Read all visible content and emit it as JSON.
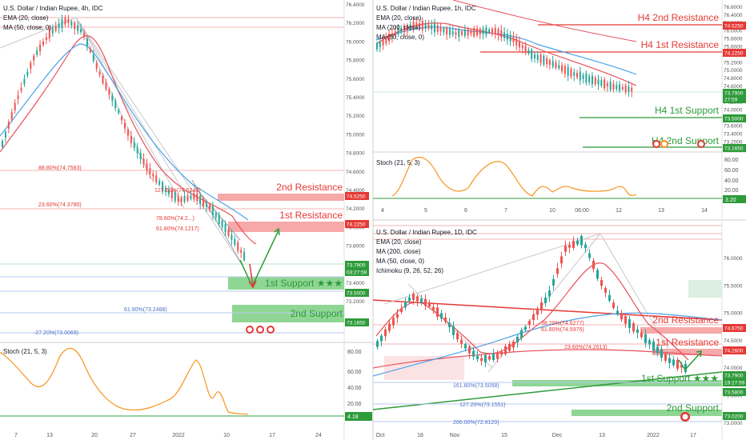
{
  "colors": {
    "up": "#26a69a",
    "down": "#ef5350",
    "resistance_zone": "#f7a8a8",
    "support_zone": "#8fd694",
    "resistance_text": "#e53935",
    "support_text": "#2e9b3a",
    "ema": "#e8505b",
    "ma": "#4da3e8",
    "stoch": "#f7941d",
    "price_tag_red": "#e53935",
    "price_tag_green": "#2e9b3a"
  },
  "chart_data": [
    {
      "type": "candlestick",
      "panel": "4h",
      "title": "U.S. Dollar / Indian Rupee, 4h, IDC",
      "indicators": [
        "EMA (20, close)",
        "MA (50, close, 0)"
      ],
      "ylim": [
        72.8,
        76.6
      ],
      "y_ticks": [
        "76.4000",
        "76.2000",
        "76.0000",
        "75.8000",
        "75.6000",
        "75.4000",
        "75.2000",
        "75.0000",
        "74.8000",
        "74.6000",
        "74.4000",
        "74.2000",
        "74.0000",
        "73.8000",
        "73.6000",
        "73.4000",
        "73.2000",
        "73.0000"
      ],
      "x_ticks": [
        "7",
        "13",
        "20",
        "27",
        "2022",
        "10",
        "17",
        "24"
      ],
      "price_tags": [
        {
          "label": "74.5250",
          "color": "red"
        },
        {
          "label": "74.2250",
          "color": "red"
        },
        {
          "label": "73.7900",
          "color": "green"
        },
        {
          "label": "03:27:59",
          "color": "green"
        },
        {
          "label": "73.5000",
          "color": "green"
        },
        {
          "label": "73.1650",
          "color": "green"
        }
      ],
      "annotations": {
        "r2": "2nd Resistance",
        "r1": "1st Resistance",
        "s1": "1st Support ★★★",
        "s2": "2nd Support",
        "fib1": "88.80%(74.7583)",
        "fib2": "23.60%(74.3780)",
        "fib3": "78.60%(74.2...)",
        "fib4": "61.80%(74.1217)",
        "fib5": "127.20%(74.5248)",
        "fib6": "61.80%(73.2488)",
        "fib7": "-27.20%(73.0069)"
      },
      "stoch": {
        "label": "Stoch (21, 5, 3)",
        "ticks": [
          "80.00",
          "60.00",
          "40.00",
          "20.00"
        ],
        "value_tag": "4.18"
      }
    },
    {
      "type": "candlestick",
      "panel": "1h",
      "title": "U.S. Dollar / Indian Rupee, 1h, IDC",
      "indicators": [
        "EMA (20, close)",
        "MA (200, close)",
        "MA (50, close, 0)"
      ],
      "ylim": [
        73.0,
        76.8
      ],
      "y_ticks": [
        "76.6000",
        "76.4000",
        "76.2000",
        "76.0000",
        "75.8000",
        "75.6000",
        "75.4000",
        "75.2000",
        "75.0000",
        "74.8000",
        "74.6000",
        "74.4000",
        "74.2000",
        "74.0000",
        "73.8000",
        "73.6000",
        "73.4000",
        "73.2000"
      ],
      "x_ticks": [
        "4",
        "5",
        "6",
        "7",
        "10",
        "06:00",
        "12",
        "13",
        "14"
      ],
      "price_tags": [
        {
          "label": "74.5250",
          "color": "red"
        },
        {
          "label": "74.2250",
          "color": "red"
        },
        {
          "label": "73.7900",
          "color": "green"
        },
        {
          "label": "27:59",
          "color": "green"
        },
        {
          "label": "73.5000",
          "color": "green"
        },
        {
          "label": "73.1650",
          "color": "green"
        }
      ],
      "annotations": {
        "r2": "H4 2nd Resistance",
        "r1": "H4 1st Resistance",
        "s1": "H4 1st Support",
        "s2": "H4 2nd Support"
      },
      "stoch": {
        "label": "Stoch (21, 5, 3)",
        "ticks": [
          "80.00",
          "60.00",
          "40.00",
          "20.00"
        ],
        "value_tag": "3.20"
      }
    },
    {
      "type": "candlestick",
      "panel": "1D",
      "title": "U.S. Dollar / Indian Rupee, 1D, IDC",
      "indicators": [
        "EMA (20, close)",
        "MA (200, close)",
        "MA (50, close, 0)",
        "Ichimoku (9, 26, 52, 26)"
      ],
      "ylim": [
        72.7,
        76.5
      ],
      "y_ticks": [
        "76.0000",
        "75.5000",
        "75.0000",
        "74.5000",
        "74.0000",
        "73.5000",
        "73.0000"
      ],
      "x_ticks": [
        "Oct",
        "18",
        "Nov",
        "15",
        "Dec",
        "13",
        "2022",
        "17"
      ],
      "price_tags": [
        {
          "label": "74.6750",
          "color": "red"
        },
        {
          "label": "74.2600",
          "color": "red"
        },
        {
          "label": "73.7900",
          "color": "green"
        },
        {
          "label": "19:27:59",
          "color": "green"
        },
        {
          "label": "73.5800",
          "color": "green"
        },
        {
          "label": "73.0200",
          "color": "green"
        }
      ],
      "annotations": {
        "r2": "2nd Resistance",
        "r1": "1st Resistance",
        "s1": "1st Support ★★★",
        "s2": "2nd Support",
        "fib1": "38.20%(74.6277)",
        "fib2": "61.80%(74.5975)",
        "fib3": "23.60%(74.2613)",
        "fib4": "161.80%(73.5058)",
        "fib5": "127.20%(73.1551)",
        "fib6": "200.00%(72.8120)"
      }
    }
  ]
}
